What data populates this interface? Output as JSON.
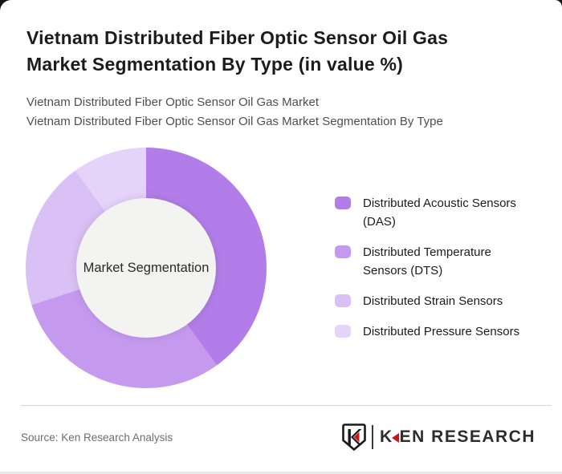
{
  "title": "Vietnam Distributed Fiber Optic Sensor Oil Gas Market Segmentation By Type (in value %)",
  "subtitles": [
    "Vietnam Distributed Fiber Optic Sensor Oil Gas Market",
    "Vietnam Distributed Fiber Optic Sensor Oil Gas Market Segmentation By Type"
  ],
  "chart_data": {
    "type": "pie",
    "subtype": "donut",
    "center_label": "Market Segmentation",
    "categories": [
      "Distributed Acoustic Sensors (DAS)",
      "Distributed Temperature Sensors (DTS)",
      "Distributed Strain Sensors",
      "Distributed Pressure Sensors"
    ],
    "values": [
      40,
      30,
      20,
      10
    ],
    "values_are_estimates_from_arc_angles": true,
    "colors": [
      "#b27de8",
      "#c59aee",
      "#d9c0f5",
      "#e6d3f9"
    ],
    "start_angle_deg": 0,
    "direction": "clockwise",
    "legend_position": "right",
    "hole_color": "#f3f3f2",
    "no_numeric_labels_shown": true
  },
  "footer": {
    "source": "Source: Ken Research Analysis",
    "brand_name": "KEN RESEARCH",
    "brand_icon": "ken-research-shield-k-icon",
    "accent_color": "#c4161c"
  }
}
